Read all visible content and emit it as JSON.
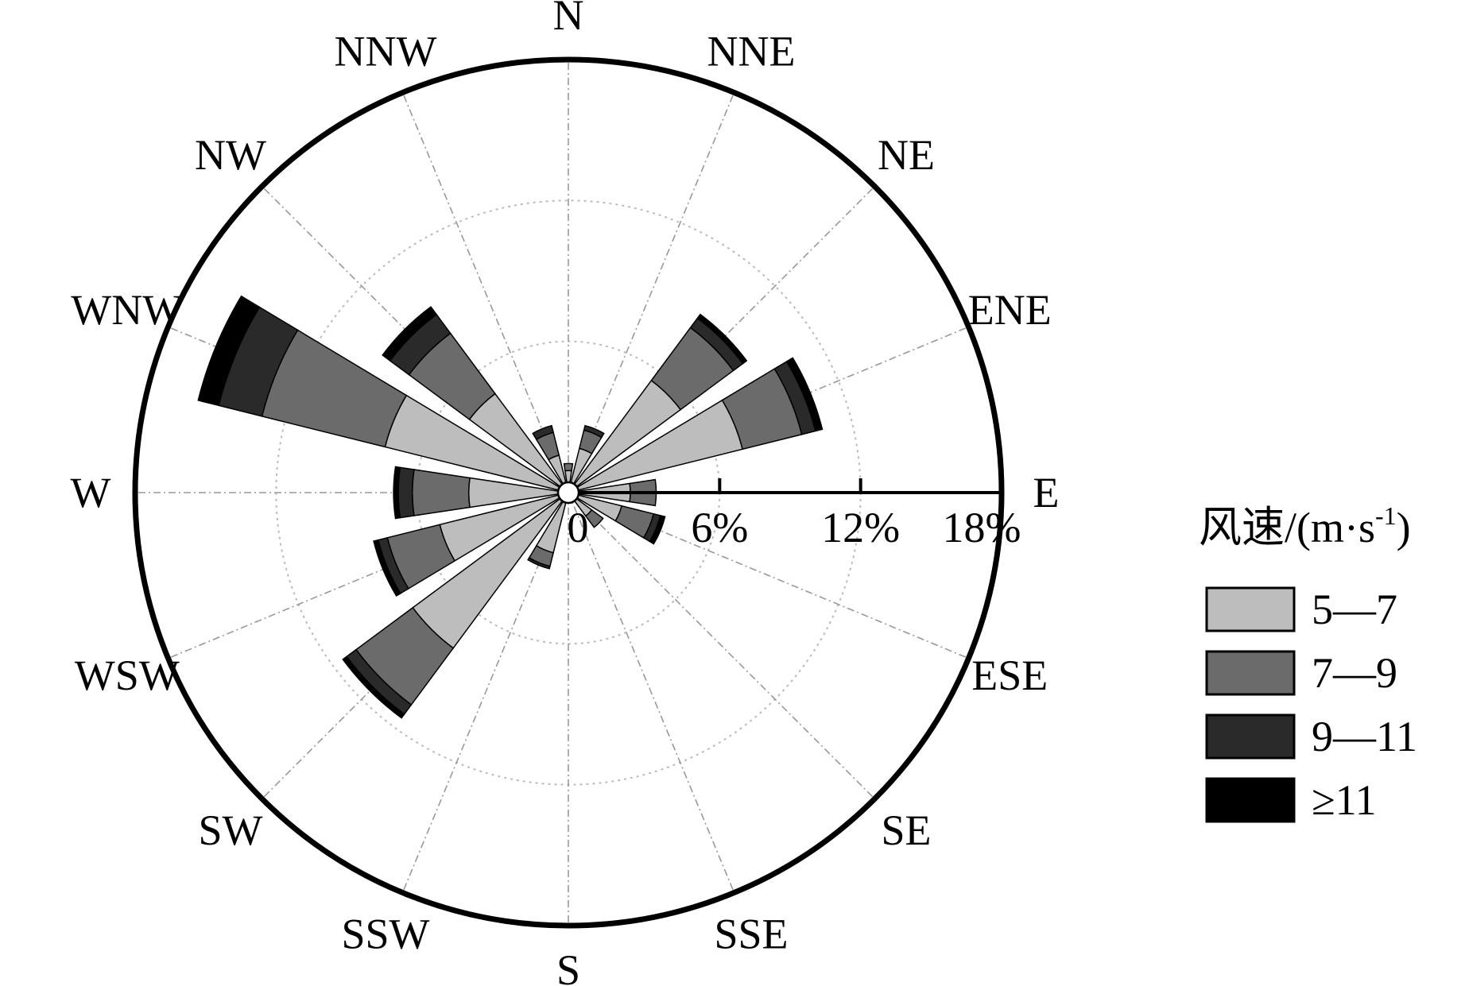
{
  "chart_data": {
    "type": "windrose",
    "directions": [
      "N",
      "NNE",
      "NE",
      "ENE",
      "E",
      "ESE",
      "SE",
      "SSE",
      "S",
      "SSW",
      "SW",
      "WSW",
      "W",
      "WNW",
      "NW",
      "NNW"
    ],
    "radial_ticks": [
      "0",
      "6%",
      "12%",
      "18%"
    ],
    "radial_max": 18,
    "legend_title_main": "风速/(m·s",
    "legend_title_exp": "-1",
    "legend_title_close": ")",
    "series": [
      {
        "name": "5—7",
        "color": "#bdbdbd",
        "values": [
          0.5,
          1.5,
          5.5,
          7.2,
          2.2,
          1.9,
          0.8,
          0,
          0,
          2.2,
          7.8,
          5.2,
          3.8,
          7.6,
          4.8,
          1.2
        ]
      },
      {
        "name": "7—9",
        "color": "#6b6b6b",
        "values": [
          0.3,
          0.8,
          2.8,
          2.6,
          1.1,
          1.4,
          0.6,
          0,
          0,
          0.6,
          3.0,
          2.3,
          2.4,
          5.4,
          3.2,
          1.0
        ]
      },
      {
        "name": "9—11",
        "color": "#2a2a2a",
        "values": [
          0,
          0.2,
          0.5,
          0.6,
          0,
          0.3,
          0,
          0,
          0,
          0.1,
          0.5,
          0.4,
          0.6,
          1.9,
          1.0,
          0.3
        ]
      },
      {
        "name": "≥11",
        "color": "#000000",
        "values": [
          0,
          0,
          0.2,
          0.3,
          0,
          0.2,
          0,
          0,
          0,
          0,
          0.2,
          0.2,
          0.2,
          0.9,
          0.4,
          0
        ]
      }
    ],
    "grid": true,
    "legend_position": "right"
  }
}
